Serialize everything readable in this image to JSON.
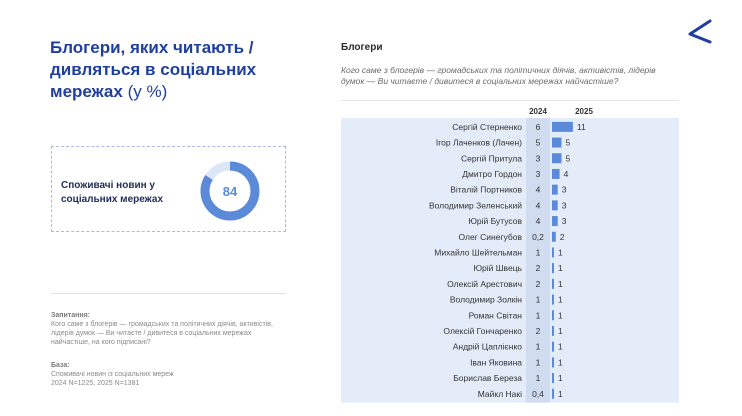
{
  "header": {
    "title": "Блогери, яких читають / дивляться в соціальних мережах",
    "unit": "(у %)"
  },
  "kpi": {
    "label": "Споживачі новин у соціальних мережах",
    "value": "84",
    "percent": 84,
    "colors": {
      "fill": "#5b8ad8",
      "track": "#dbe6f7"
    }
  },
  "notes": {
    "question_label": "Запитання:",
    "question_text": "Кого саме з блогерів — громадських та політичних діячів, активістів, лідерів думок — Ви читаєте / дивитеся в соціальних мережах найчастіше, на кого підписані?",
    "base_label": "База:",
    "base_text_1": "Споживачі новин із соціальних мереж",
    "base_text_2": "2024  N=1225, 2025  N=1381"
  },
  "chart": {
    "title": "Блогери",
    "subtitle": "Кого саме з блогерів — громадських та політичних діячів, активістів, лідерів думок — Ви читаєте / дивитеся в соціальних мережах найчастіше?"
  },
  "chart_data": {
    "type": "bar",
    "orientation": "horizontal",
    "categories": [
      "Сергій Стерненко",
      "Ігор Лаченков (Лачен)",
      "Сергій Притула",
      "Дмитро Гордон",
      "Віталій Портников",
      "Володимир Зеленський",
      "Юрій Бутусов",
      "Олег Синегубов",
      "Михайло Шейтельман",
      "Юрій Швець",
      "Олексій Арестович",
      "Володимир Золкін",
      "Роман Світан",
      "Олексій Гончаренко",
      "Андрій Цаплієнко",
      "Іван Яковина",
      "Борислав Береза",
      "Майкл Накі"
    ],
    "columns": [
      "2024",
      "2025"
    ],
    "values_2024": [
      "6",
      "5",
      "3",
      "3",
      "4",
      "4",
      "4",
      "0,2",
      "1",
      "2",
      "2",
      "1",
      "1",
      "2",
      "1",
      "1",
      "1",
      "0,4"
    ],
    "values_2025": [
      11,
      5,
      5,
      4,
      3,
      3,
      3,
      2,
      1,
      1,
      1,
      1,
      1,
      1,
      1,
      1,
      1,
      1
    ],
    "colors": {
      "bar": "#5b8ad8",
      "panel": "#e3ecf8",
      "col2024": "#d0dcf0"
    }
  }
}
